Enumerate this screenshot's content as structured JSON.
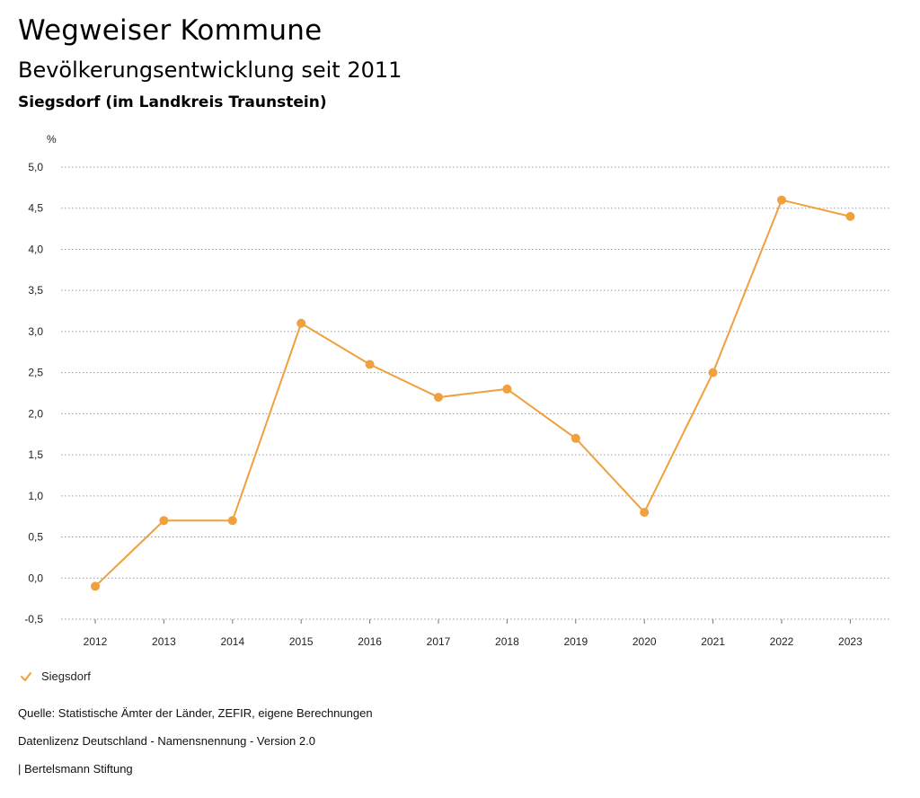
{
  "header": {
    "title": "Wegweiser Kommune",
    "subtitle": "Bevölkerungsentwicklung seit 2011",
    "region": "Siegsdorf (im Landkreis Traunstein)"
  },
  "chart_data": {
    "type": "line",
    "ylabel": "%",
    "ylim": [
      -0.5,
      5.0
    ],
    "yticks": [
      "5,0",
      "4,5",
      "4,0",
      "3,5",
      "3,0",
      "2,5",
      "2,0",
      "1,5",
      "1,0",
      "0,5",
      "0,0",
      "-0,5"
    ],
    "ytick_values": [
      5.0,
      4.5,
      4.0,
      3.5,
      3.0,
      2.5,
      2.0,
      1.5,
      1.0,
      0.5,
      0.0,
      -0.5
    ],
    "categories": [
      "2012",
      "2013",
      "2014",
      "2015",
      "2016",
      "2017",
      "2018",
      "2019",
      "2020",
      "2021",
      "2022",
      "2023"
    ],
    "series": [
      {
        "name": "Siegsdorf",
        "color": "#f0a03c",
        "values": [
          -0.1,
          0.7,
          0.7,
          3.1,
          2.6,
          2.2,
          2.3,
          1.7,
          0.8,
          2.5,
          4.6,
          4.4
        ]
      }
    ],
    "grid": true,
    "legend": "bottom-left"
  },
  "legend": {
    "label": "Siegsdorf",
    "icon": "check-icon"
  },
  "footer": {
    "source": "Quelle: Statistische Ämter der Länder, ZEFIR, eigene Berechnungen",
    "license": "Datenlizenz Deutschland - Namensnennung - Version 2.0",
    "credit": "| Bertelsmann Stiftung"
  }
}
